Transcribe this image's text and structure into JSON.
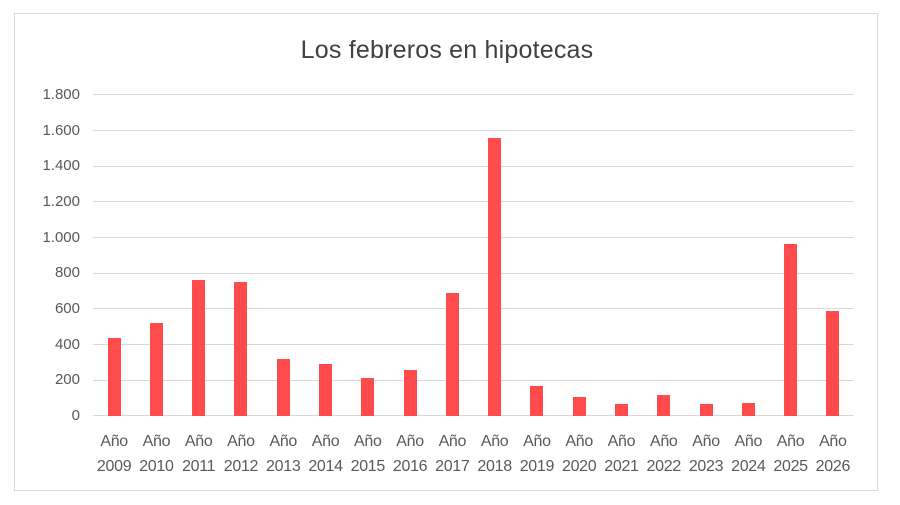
{
  "chart_data": {
    "type": "bar",
    "title": "Los febreros en hipotecas",
    "xlabel": "",
    "ylabel": "",
    "ylim": [
      0,
      1800
    ],
    "yticks": [
      0,
      200,
      400,
      600,
      800,
      1000,
      1200,
      1400,
      1600,
      1800
    ],
    "ytick_labels": [
      "0",
      "200",
      "400",
      "600",
      "800",
      "1.000",
      "1.200",
      "1.400",
      "1.600",
      "1.800"
    ],
    "grid": true,
    "legend": null,
    "bar_color": "#FF4B4B",
    "categories": [
      "Año 2009",
      "Año 2010",
      "Año 2011",
      "Año 2012",
      "Año 2013",
      "Año 2014",
      "Año 2015",
      "Año 2016",
      "Año 2017",
      "Año 2018",
      "Año 2019",
      "Año 2020",
      "Año 2021",
      "Año 2022",
      "Año 2023",
      "Año 2024",
      "Año 2025",
      "Año 2026"
    ],
    "category_lines": [
      [
        "Año",
        "2009"
      ],
      [
        "Año",
        "2010"
      ],
      [
        "Año",
        "2011"
      ],
      [
        "Año",
        "2012"
      ],
      [
        "Año",
        "2013"
      ],
      [
        "Año",
        "2014"
      ],
      [
        "Año",
        "2015"
      ],
      [
        "Año",
        "2016"
      ],
      [
        "Año",
        "2017"
      ],
      [
        "Año",
        "2018"
      ],
      [
        "Año",
        "2019"
      ],
      [
        "Año",
        "2020"
      ],
      [
        "Año",
        "2021"
      ],
      [
        "Año",
        "2022"
      ],
      [
        "Año",
        "2023"
      ],
      [
        "Año",
        "2024"
      ],
      [
        "Año",
        "2025"
      ],
      [
        "Año",
        "2026"
      ]
    ],
    "values": [
      440,
      520,
      760,
      750,
      320,
      292,
      215,
      258,
      690,
      1560,
      170,
      108,
      67,
      120,
      68,
      73,
      963,
      587
    ]
  }
}
